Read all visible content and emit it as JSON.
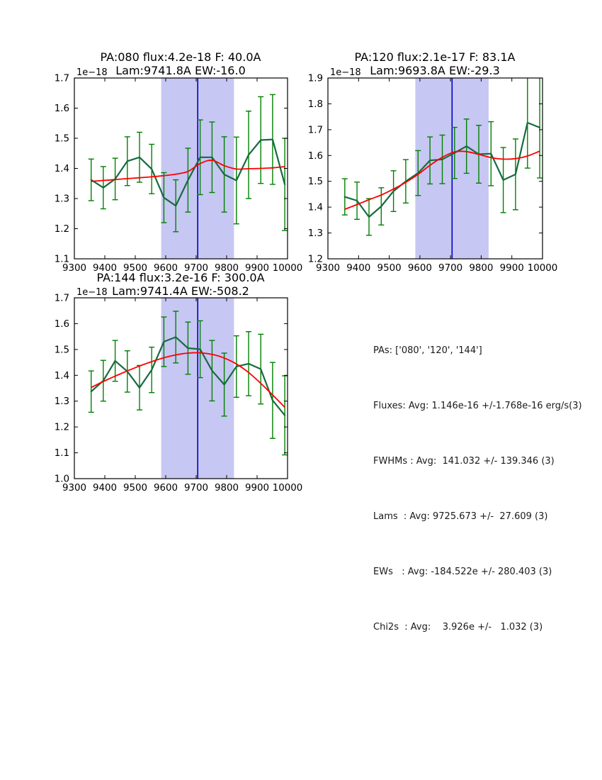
{
  "colors": {
    "band": "#c7c7f3",
    "vline": "#0000c8",
    "data_line": "#176b3f",
    "errorbar": "#008000",
    "fit_line": "#ff0000",
    "axis": "#000000"
  },
  "stats_panel": {
    "lines": [
      "PAs: ['080', '120', '144']",
      "Fluxes: Avg: 1.146e-16 +/-1.768e-16 erg/s(3)",
      "FWHMs : Avg:  141.032 +/- 139.346 (3)",
      "Lams  : Avg: 9725.673 +/-  27.609 (3)",
      "EWs   : Avg: -184.522e +/- 280.403 (3)",
      "Chi2s  : Avg:    3.926e +/-   1.032 (3)"
    ]
  },
  "chart_data": [
    {
      "type": "line",
      "title_line1": "PA:080 flux:4.2e-18 F: 40.0A",
      "title_line2": "Lam:9741.8A EW:-16.0",
      "offset_label": "1e−18",
      "xlim": [
        9300,
        10000
      ],
      "ylim": [
        1.1,
        1.7
      ],
      "xticks": [
        9300,
        9400,
        9500,
        9600,
        9700,
        9800,
        9900,
        10000
      ],
      "xtick_labels": [
        "9300",
        "9400",
        "9500",
        "9600",
        "9700",
        "9800",
        "9900",
        "10000"
      ],
      "yticks": [
        1.1,
        1.2,
        1.3,
        1.4,
        1.5,
        1.6,
        1.7
      ],
      "ytick_labels": [
        "1.1",
        "1.2",
        "1.3",
        "1.4",
        "1.5",
        "1.6",
        "1.7"
      ],
      "band": [
        9585,
        9824
      ],
      "vline": 9705,
      "grid": false,
      "legend": null,
      "x": [
        9355,
        9395,
        9434,
        9474,
        9514,
        9554,
        9594,
        9633,
        9673,
        9713,
        9752,
        9792,
        9832,
        9872,
        9912,
        9951,
        9991
      ],
      "series": [
        {
          "name": "spectrum",
          "color_role": "data_line",
          "values": [
            1.362,
            1.336,
            1.365,
            1.424,
            1.437,
            1.398,
            1.303,
            1.276,
            1.361,
            1.437,
            1.437,
            1.38,
            1.36,
            1.445,
            1.494,
            1.496,
            1.347
          ],
          "errors": [
            0.069,
            0.07,
            0.069,
            0.081,
            0.083,
            0.082,
            0.083,
            0.086,
            0.106,
            0.124,
            0.117,
            0.125,
            0.144,
            0.145,
            0.144,
            0.149,
            0.153
          ]
        },
        {
          "name": "gaussian-fit",
          "color_role": "fit_line",
          "values": [
            1.357,
            1.36,
            1.363,
            1.366,
            1.369,
            1.372,
            1.376,
            1.381,
            1.39,
            1.416,
            1.427,
            1.409,
            1.398,
            1.399,
            1.4,
            1.402,
            1.406
          ]
        }
      ]
    },
    {
      "type": "line",
      "title_line1": "PA:120 flux:2.1e-17 F: 83.1A",
      "title_line2": "Lam:9693.8A EW:-29.3",
      "offset_label": "1e−18",
      "xlim": [
        9300,
        10000
      ],
      "ylim": [
        1.2,
        1.9
      ],
      "xticks": [
        9300,
        9400,
        9500,
        9600,
        9700,
        9800,
        9900,
        10000
      ],
      "xtick_labels": [
        "9300",
        "9400",
        "9500",
        "9600",
        "9700",
        "9800",
        "9900",
        "10000"
      ],
      "yticks": [
        1.2,
        1.3,
        1.4,
        1.5,
        1.6,
        1.7,
        1.8,
        1.9
      ],
      "ytick_labels": [
        "1.2",
        "1.3",
        "1.4",
        "1.5",
        "1.6",
        "1.7",
        "1.8",
        "1.9"
      ],
      "band": [
        9585,
        9824
      ],
      "vline": 9705,
      "grid": false,
      "legend": null,
      "x": [
        9355,
        9395,
        9434,
        9474,
        9514,
        9554,
        9594,
        9633,
        9673,
        9713,
        9752,
        9792,
        9832,
        9872,
        9912,
        9951,
        9991
      ],
      "series": [
        {
          "name": "spectrum",
          "color_role": "data_line",
          "values": [
            1.44,
            1.425,
            1.362,
            1.403,
            1.462,
            1.5,
            1.532,
            1.581,
            1.585,
            1.61,
            1.636,
            1.605,
            1.607,
            1.505,
            1.527,
            1.727,
            1.708
          ],
          "errors": [
            0.07,
            0.072,
            0.071,
            0.072,
            0.079,
            0.084,
            0.087,
            0.091,
            0.094,
            0.099,
            0.105,
            0.112,
            0.124,
            0.126,
            0.137,
            0.176,
            0.195
          ]
        },
        {
          "name": "gaussian-fit",
          "color_role": "fit_line",
          "values": [
            1.392,
            1.41,
            1.429,
            1.447,
            1.47,
            1.496,
            1.527,
            1.562,
            1.593,
            1.614,
            1.615,
            1.604,
            1.592,
            1.586,
            1.588,
            1.598,
            1.617
          ]
        }
      ]
    },
    {
      "type": "line",
      "title_line1": "PA:144 flux:3.2e-16 F: 300.0A",
      "title_line2": "Lam:9741.4A EW:-508.2",
      "offset_label": "1e−18",
      "xlim": [
        9300,
        10000
      ],
      "ylim": [
        1.0,
        1.7
      ],
      "xticks": [
        9300,
        9400,
        9500,
        9600,
        9700,
        9800,
        9900,
        10000
      ],
      "xtick_labels": [
        "9300",
        "9400",
        "9500",
        "9600",
        "9700",
        "9800",
        "9900",
        "10000"
      ],
      "yticks": [
        1.0,
        1.1,
        1.2,
        1.3,
        1.4,
        1.5,
        1.6,
        1.7
      ],
      "ytick_labels": [
        "1.0",
        "1.1",
        "1.2",
        "1.3",
        "1.4",
        "1.5",
        "1.6",
        "1.7"
      ],
      "band": [
        9585,
        9824
      ],
      "vline": 9705,
      "grid": false,
      "legend": null,
      "x": [
        9355,
        9395,
        9434,
        9474,
        9514,
        9554,
        9594,
        9633,
        9673,
        9713,
        9752,
        9792,
        9832,
        9872,
        9912,
        9951,
        9991
      ],
      "series": [
        {
          "name": "spectrum",
          "color_role": "data_line",
          "values": [
            1.337,
            1.379,
            1.456,
            1.415,
            1.352,
            1.421,
            1.53,
            1.548,
            1.505,
            1.501,
            1.418,
            1.364,
            1.434,
            1.445,
            1.424,
            1.303,
            1.245
          ],
          "errors": [
            0.08,
            0.079,
            0.079,
            0.08,
            0.086,
            0.088,
            0.096,
            0.1,
            0.101,
            0.11,
            0.117,
            0.122,
            0.119,
            0.124,
            0.135,
            0.147,
            0.153
          ]
        },
        {
          "name": "gaussian-fit",
          "color_role": "fit_line",
          "values": [
            1.353,
            1.376,
            1.397,
            1.417,
            1.436,
            1.453,
            1.468,
            1.479,
            1.486,
            1.487,
            1.481,
            1.467,
            1.444,
            1.411,
            1.369,
            1.324,
            1.276
          ]
        }
      ]
    }
  ]
}
